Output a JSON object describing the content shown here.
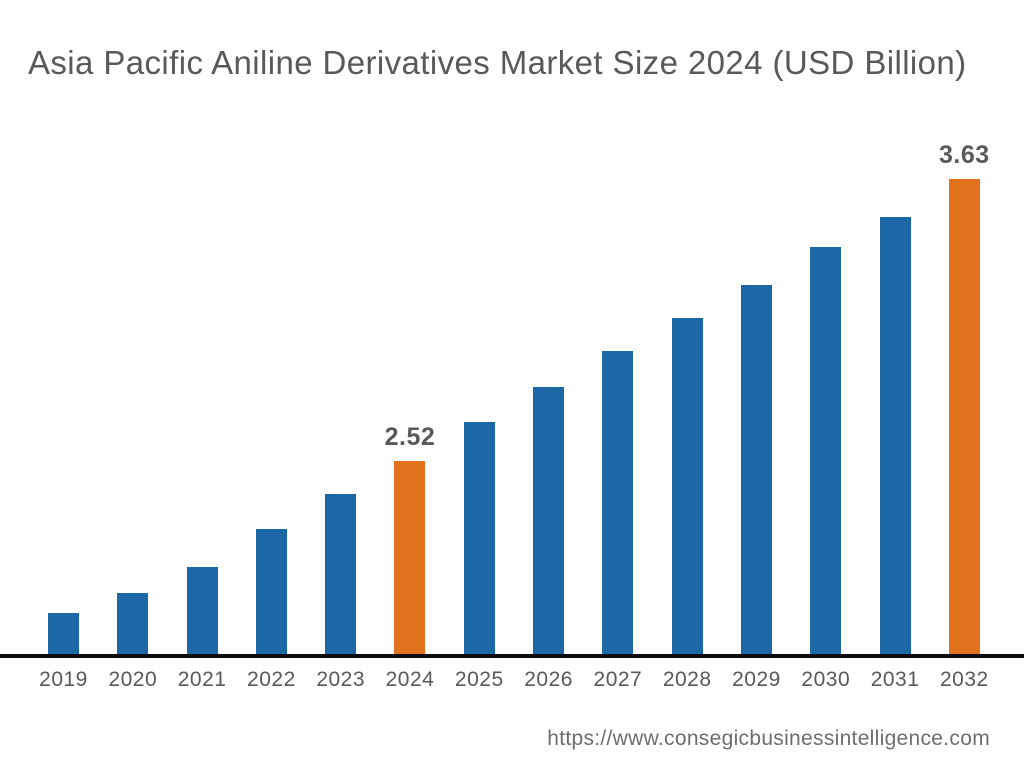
{
  "header": {
    "title": "Asia Pacific Aniline Derivatives Market Size 2024 (USD Billion)"
  },
  "footer": {
    "source_url": "https://www.consegicbusinessintelligence.com"
  },
  "colors": {
    "bar_default": "#1c67a5",
    "bar_highlight": "#e2711d",
    "title_text": "#58595b",
    "data_label_text": "#595959",
    "tick_label_text": "#595959",
    "axis_line": "#0d0d0d",
    "url_text": "#6d6e70",
    "background": "#ffffff"
  },
  "chart_data": {
    "type": "bar",
    "title": "Asia Pacific Aniline Derivatives Market Size 2024 (USD Billion)",
    "xlabel": "",
    "ylabel": "",
    "unit": "USD Billion",
    "categories": [
      "2019",
      "2020",
      "2021",
      "2022",
      "2023",
      "2024",
      "2025",
      "2026",
      "2027",
      "2028",
      "2029",
      "2030",
      "2031",
      "2032"
    ],
    "values": [
      1.92,
      2.0,
      2.1,
      2.25,
      2.39,
      2.52,
      2.67,
      2.81,
      2.95,
      3.08,
      3.21,
      3.36,
      3.48,
      3.63
    ],
    "data_labels": {
      "2024": "2.52",
      "2032": "3.63"
    },
    "highlighted_categories": [
      "2024",
      "2032"
    ],
    "ylim": [
      1.75,
      3.72
    ],
    "y_axis_visible": false,
    "grid": false,
    "legend": false
  }
}
